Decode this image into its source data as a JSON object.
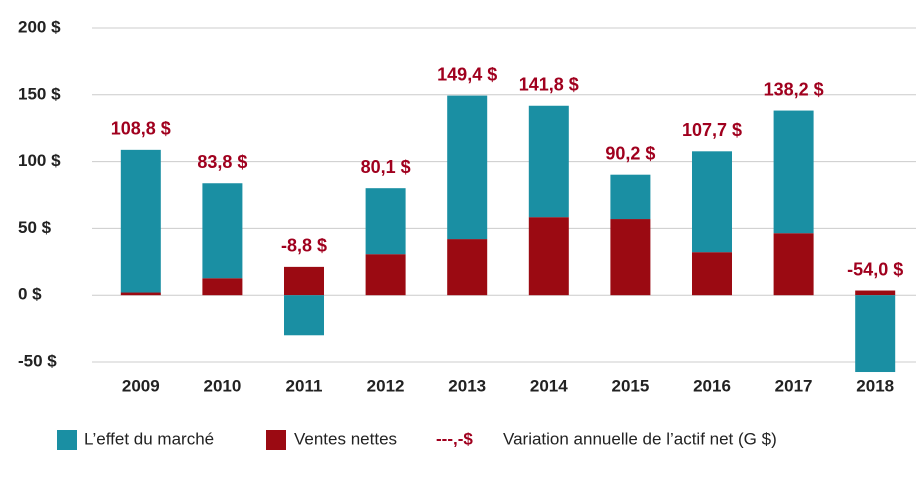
{
  "chart_data": {
    "type": "stacked_bar",
    "categories": [
      "2009",
      "2010",
      "2011",
      "2012",
      "2013",
      "2014",
      "2015",
      "2016",
      "2017",
      "2018"
    ],
    "series": [
      {
        "name": "Ventes nettes",
        "color": "#9b0a12",
        "values": [
          2.0,
          12.7,
          21.2,
          30.7,
          42.0,
          58.4,
          57.0,
          32.2,
          46.4,
          3.5
        ]
      },
      {
        "name": "L’effet du marché",
        "color": "#1a8fa3",
        "values": [
          106.8,
          71.1,
          -30.0,
          49.4,
          107.4,
          83.4,
          33.2,
          75.5,
          91.8,
          -57.5
        ]
      }
    ],
    "totals": {
      "name": "Variation annuelle de l’actif net (G $)",
      "legend_marker": "---,-$",
      "color": "#a0001e",
      "values": [
        108.8,
        83.8,
        -8.8,
        80.1,
        149.4,
        141.8,
        90.2,
        107.7,
        138.2,
        -54.0
      ],
      "value_labels": [
        "108,8 $",
        "83,8 $",
        "-8,8 $",
        "80,1 $",
        "149,4 $",
        "141,8 $",
        "90,2 $",
        "107,7 $",
        "138,2 $",
        "-54,0 $"
      ]
    },
    "ylim": [
      -50,
      200
    ],
    "yticks": [
      {
        "value": -50,
        "label": "-50 $"
      },
      {
        "value": 0,
        "label": "0 $"
      },
      {
        "value": 50,
        "label": "50 $"
      },
      {
        "value": 100,
        "label": "100 $"
      },
      {
        "value": 150,
        "label": "150 $"
      },
      {
        "value": 200,
        "label": "200 $"
      }
    ],
    "grid": true
  }
}
